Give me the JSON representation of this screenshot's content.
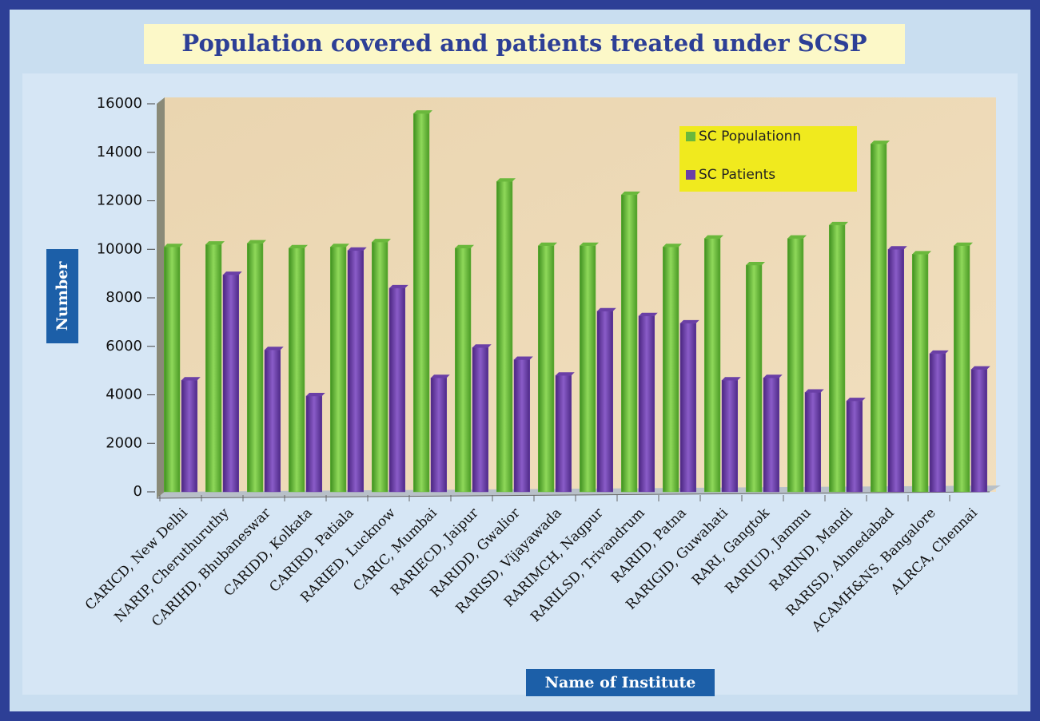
{
  "chart_data": {
    "type": "bar",
    "title": "Population covered and patients treated under SCSP",
    "x_label": "Name of Institute",
    "y_label": "Number",
    "categories": [
      "CARICD, New Delhi",
      "NARIP, Cheruthuruthy",
      "CARIHD, Bhubaneswar",
      "CARIDD, Kolkata",
      "CARIRD, Patiala",
      "RARIED, Lucknow",
      "CARIC, Mumbai",
      "RARIECD, Jaipur",
      "RARIDD, Gwalior",
      "RARISD, Vijayawada",
      "RARIMCH, Nagpur",
      "RARILSD, Trivandrum",
      "RARIID, Patna",
      "RARIGID, Guwahati",
      "RARI, Gangtok",
      "RARIUD, Jammu",
      "RARIND, Mandi",
      "RARISD, Ahmedabad",
      "ACAMH&NS, Bangalore",
      "ALRCA, Chennai"
    ],
    "series": [
      {
        "name": "SC Populationn",
        "color": "#6ab83c",
        "values": [
          10100,
          10200,
          10250,
          10050,
          10100,
          10300,
          15600,
          10050,
          12800,
          10150,
          10150,
          12250,
          10100,
          10450,
          9350,
          10450,
          11000,
          14350,
          9800,
          10150
        ]
      },
      {
        "name": "SC Patients",
        "color": "#6a3fa6",
        "values": [
          4600,
          8950,
          5850,
          3950,
          9950,
          8400,
          4700,
          5950,
          5450,
          4800,
          7450,
          7250,
          6950,
          4600,
          4700,
          4100,
          3750,
          10000,
          5700,
          5050
        ]
      }
    ],
    "ylim": [
      0,
      16000
    ],
    "yticks": [
      0,
      2000,
      4000,
      6000,
      8000,
      10000,
      12000,
      14000,
      16000
    ],
    "legend": "upper right"
  }
}
